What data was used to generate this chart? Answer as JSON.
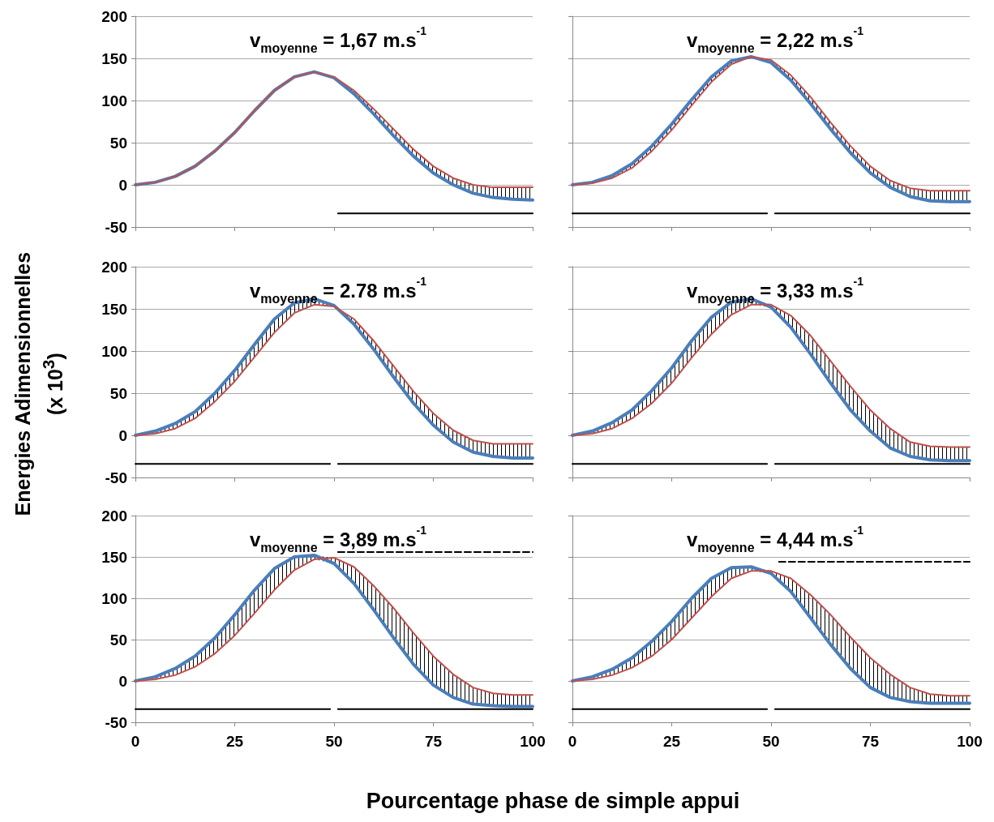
{
  "chart_data": [
    {
      "type": "line",
      "title": "v$_{moyenne}$ = 1,67 m.s$^{-1}$",
      "x": [
        0,
        5,
        10,
        15,
        20,
        25,
        30,
        35,
        40,
        45,
        50,
        55,
        60,
        65,
        70,
        75,
        80,
        85,
        90,
        95,
        100
      ],
      "xlim": [
        0,
        100
      ],
      "xticks": [
        0,
        25,
        50,
        75,
        100
      ],
      "ylim": [
        -50,
        200
      ],
      "yticks": [
        -50,
        0,
        50,
        100,
        150,
        200
      ],
      "grid": "y",
      "marker": "none",
      "line_style": "solid",
      "tick_labels": "y",
      "series": [
        {
          "color": "#4a7ebb",
          "values": [
            0,
            3,
            10,
            22,
            40,
            62,
            88,
            112,
            128,
            134,
            127,
            108,
            84,
            58,
            34,
            14,
            0,
            -10,
            -15,
            -17,
            -18
          ]
        },
        {
          "color": "#c0504d",
          "values": [
            0,
            3,
            10,
            22,
            40,
            62,
            88,
            112,
            128,
            134,
            128,
            112,
            90,
            66,
            42,
            22,
            8,
            0,
            -3,
            -3,
            -3
          ],
          "lower": [
            0,
            3,
            10,
            22,
            40,
            62,
            88,
            112,
            128,
            134,
            127,
            108,
            84,
            58,
            34,
            14,
            0,
            -10,
            -15,
            -17,
            -18
          ],
          "upper": [
            0,
            3,
            10,
            22,
            40,
            62,
            88,
            112,
            128,
            134,
            128,
            112,
            90,
            66,
            42,
            22,
            8,
            0,
            -3,
            -3,
            -3
          ]
        },
        {
          "color": "#000000",
          "x": [
            51,
            100
          ],
          "values": [
            -34,
            -34
          ]
        }
      ]
    },
    {
      "type": "line",
      "title": "v$_{moyenne}$ = 2,22 m.s$^{-1}$",
      "x": [
        0,
        5,
        10,
        15,
        20,
        25,
        30,
        35,
        40,
        45,
        50,
        55,
        60,
        65,
        70,
        75,
        80,
        85,
        90,
        95,
        100
      ],
      "xlim": [
        0,
        100
      ],
      "xticks": [
        0,
        25,
        50,
        75,
        100
      ],
      "ylim": [
        -50,
        200
      ],
      "yticks": [
        -50,
        0,
        50,
        100,
        150,
        200
      ],
      "grid": "y",
      "marker": "none",
      "line_style": "solid",
      "tick_labels": false,
      "series": [
        {
          "color": "#4a7ebb",
          "values": [
            0,
            3,
            11,
            25,
            46,
            72,
            101,
            128,
            147,
            152,
            145,
            124,
            96,
            66,
            38,
            14,
            -3,
            -14,
            -19,
            -20,
            -20
          ]
        },
        {
          "color": "#c0504d",
          "values": [
            0,
            2,
            8,
            20,
            40,
            65,
            94,
            122,
            143,
            152,
            148,
            130,
            104,
            74,
            46,
            22,
            5,
            -4,
            -7,
            -7,
            -7
          ],
          "lower": [
            0,
            2,
            8,
            20,
            40,
            65,
            94,
            122,
            143,
            152,
            145,
            124,
            96,
            66,
            38,
            14,
            -3,
            -14,
            -19,
            -20,
            -20
          ],
          "upper": [
            0,
            3,
            11,
            25,
            46,
            72,
            101,
            128,
            147,
            152,
            148,
            130,
            104,
            74,
            46,
            22,
            5,
            -4,
            -7,
            -7,
            -7
          ]
        },
        {
          "color": "#000000",
          "x": [
            0,
            49
          ],
          "values": [
            -34,
            -34
          ]
        },
        {
          "color": "#000000",
          "x": [
            51,
            100
          ],
          "values": [
            -34,
            -34
          ]
        }
      ]
    },
    {
      "type": "line",
      "title": "v$_{moyenne}$ = 2.78 m.s$^{-1}$",
      "ylabel": "Energies Adimensionnelles (x 10$^{3}$)",
      "x": [
        0,
        5,
        10,
        15,
        20,
        25,
        30,
        35,
        40,
        45,
        50,
        55,
        60,
        65,
        70,
        75,
        80,
        85,
        90,
        95,
        100
      ],
      "xlim": [
        0,
        100
      ],
      "xticks": [
        0,
        25,
        50,
        75,
        100
      ],
      "ylim": [
        -50,
        200
      ],
      "yticks": [
        -50,
        0,
        50,
        100,
        150,
        200
      ],
      "grid": "y",
      "marker": "none",
      "line_style": "solid",
      "tick_labels": "y",
      "series": [
        {
          "color": "#4a7ebb",
          "values": [
            0,
            5,
            14,
            28,
            50,
            77,
            108,
            138,
            157,
            162,
            154,
            132,
            102,
            69,
            38,
            12,
            -8,
            -20,
            -25,
            -27,
            -27
          ]
        },
        {
          "color": "#c0504d",
          "values": [
            0,
            2,
            8,
            20,
            40,
            64,
            93,
            122,
            145,
            155,
            153,
            138,
            112,
            82,
            52,
            26,
            6,
            -6,
            -10,
            -10,
            -10
          ],
          "lower": [
            0,
            2,
            8,
            20,
            40,
            64,
            93,
            122,
            145,
            155,
            153,
            132,
            102,
            69,
            38,
            12,
            -8,
            -20,
            -25,
            -27,
            -27
          ],
          "upper": [
            0,
            5,
            14,
            28,
            50,
            77,
            108,
            138,
            157,
            162,
            154,
            138,
            112,
            82,
            52,
            26,
            6,
            -6,
            -10,
            -10,
            -10
          ]
        },
        {
          "color": "#000000",
          "x": [
            0,
            49
          ],
          "values": [
            -34,
            -34
          ]
        },
        {
          "color": "#000000",
          "x": [
            51,
            100
          ],
          "values": [
            -34,
            -34
          ]
        }
      ]
    },
    {
      "type": "line",
      "title": "v$_{moyenne}$ = 3,33 m.s$^{-1}$",
      "x": [
        0,
        5,
        10,
        15,
        20,
        25,
        30,
        35,
        40,
        45,
        50,
        55,
        60,
        65,
        70,
        75,
        80,
        85,
        90,
        95,
        100
      ],
      "xlim": [
        0,
        100
      ],
      "xticks": [
        0,
        25,
        50,
        75,
        100
      ],
      "ylim": [
        -50,
        200
      ],
      "yticks": [
        -50,
        0,
        50,
        100,
        150,
        200
      ],
      "grid": "y",
      "marker": "none",
      "line_style": "solid",
      "tick_labels": false,
      "series": [
        {
          "color": "#4a7ebb",
          "values": [
            0,
            5,
            15,
            30,
            53,
            80,
            112,
            140,
            158,
            162,
            152,
            128,
            96,
            62,
            30,
            5,
            -15,
            -25,
            -29,
            -30,
            -30
          ]
        },
        {
          "color": "#c0504d",
          "values": [
            0,
            2,
            8,
            20,
            38,
            62,
            92,
            120,
            143,
            155,
            155,
            142,
            118,
            88,
            58,
            30,
            8,
            -8,
            -13,
            -14,
            -14
          ],
          "lower": [
            0,
            2,
            8,
            20,
            38,
            62,
            92,
            120,
            143,
            155,
            152,
            128,
            96,
            62,
            30,
            5,
            -15,
            -25,
            -29,
            -30,
            -30
          ],
          "upper": [
            0,
            5,
            15,
            30,
            53,
            80,
            112,
            140,
            158,
            162,
            155,
            142,
            118,
            88,
            58,
            30,
            8,
            -8,
            -13,
            -14,
            -14
          ]
        },
        {
          "color": "#000000",
          "x": [
            0,
            49
          ],
          "values": [
            -34,
            -34
          ]
        },
        {
          "color": "#000000",
          "x": [
            51,
            100
          ],
          "values": [
            -34,
            -34
          ]
        }
      ]
    },
    {
      "type": "line",
      "title": "v$_{moyenne}$ = 3,89 m.s$^{-1}$",
      "xlabel": "Pourcentage phase de simple appui",
      "x": [
        0,
        5,
        10,
        15,
        20,
        25,
        30,
        35,
        40,
        45,
        50,
        55,
        60,
        65,
        70,
        75,
        80,
        85,
        90,
        95,
        100
      ],
      "xlim": [
        0,
        100
      ],
      "xticks": [
        0,
        25,
        50,
        75,
        100
      ],
      "ylim": [
        -50,
        200
      ],
      "yticks": [
        -50,
        0,
        50,
        100,
        150,
        200
      ],
      "grid": "y",
      "marker": "none",
      "line_style": "solid",
      "series": [
        {
          "color": "#4a7ebb",
          "values": [
            0,
            5,
            15,
            30,
            52,
            80,
            110,
            136,
            150,
            152,
            142,
            118,
            86,
            52,
            20,
            -5,
            -20,
            -28,
            -30,
            -31,
            -31
          ]
        },
        {
          "color": "#c0504d",
          "values": [
            0,
            2,
            7,
            17,
            33,
            55,
            82,
            110,
            134,
            147,
            149,
            138,
            115,
            88,
            58,
            30,
            8,
            -8,
            -15,
            -17,
            -17
          ],
          "lower": [
            0,
            2,
            7,
            17,
            33,
            55,
            82,
            110,
            134,
            147,
            142,
            118,
            86,
            52,
            20,
            -5,
            -20,
            -28,
            -30,
            -31,
            -31
          ],
          "upper": [
            0,
            5,
            15,
            30,
            52,
            80,
            110,
            136,
            150,
            152,
            149,
            138,
            115,
            88,
            58,
            30,
            8,
            -8,
            -15,
            -17,
            -17
          ]
        },
        {
          "color": "#000000",
          "x": [
            0,
            49
          ],
          "values": [
            -34,
            -34
          ]
        },
        {
          "color": "#000000",
          "x": [
            51,
            100
          ],
          "values": [
            -34,
            -34
          ]
        },
        {
          "color": "#000000",
          "x": [
            51,
            100
          ],
          "values": [
            156,
            156
          ],
          "line_style": "dashed"
        }
      ]
    },
    {
      "type": "line",
      "title": "v$_{moyenne}$ = 4,44 m.s$^{-1}$",
      "x": [
        0,
        5,
        10,
        15,
        20,
        25,
        30,
        35,
        40,
        45,
        50,
        55,
        60,
        65,
        70,
        75,
        80,
        85,
        90,
        95,
        100
      ],
      "xlim": [
        0,
        100
      ],
      "xticks": [
        0,
        25,
        50,
        75,
        100
      ],
      "ylim": [
        -50,
        200
      ],
      "yticks": [
        -50,
        0,
        50,
        100,
        150,
        200
      ],
      "grid": "y",
      "marker": "none",
      "line_style": "solid",
      "tick_labels": "x",
      "series": [
        {
          "color": "#4a7ebb",
          "values": [
            0,
            5,
            14,
            28,
            48,
            72,
            100,
            124,
            137,
            138,
            130,
            108,
            76,
            44,
            15,
            -8,
            -20,
            -25,
            -27,
            -27,
            -27
          ]
        },
        {
          "color": "#c0504d",
          "values": [
            0,
            2,
            7,
            16,
            30,
            50,
            76,
            102,
            124,
            133,
            133,
            124,
            104,
            80,
            53,
            28,
            8,
            -8,
            -16,
            -18,
            -18
          ],
          "lower": [
            0,
            2,
            7,
            16,
            30,
            50,
            76,
            102,
            124,
            133,
            130,
            108,
            76,
            44,
            15,
            -8,
            -20,
            -25,
            -27,
            -27,
            -27
          ],
          "upper": [
            0,
            5,
            14,
            28,
            48,
            72,
            100,
            124,
            137,
            138,
            133,
            124,
            104,
            80,
            53,
            28,
            8,
            -8,
            -16,
            -18,
            -18
          ]
        },
        {
          "color": "#000000",
          "x": [
            0,
            49
          ],
          "values": [
            -34,
            -34
          ]
        },
        {
          "color": "#000000",
          "x": [
            51,
            100
          ],
          "values": [
            -34,
            -34
          ]
        },
        {
          "color": "#000000",
          "x": [
            52,
            100
          ],
          "values": [
            144,
            144
          ],
          "line_style": "dashed"
        }
      ]
    }
  ]
}
